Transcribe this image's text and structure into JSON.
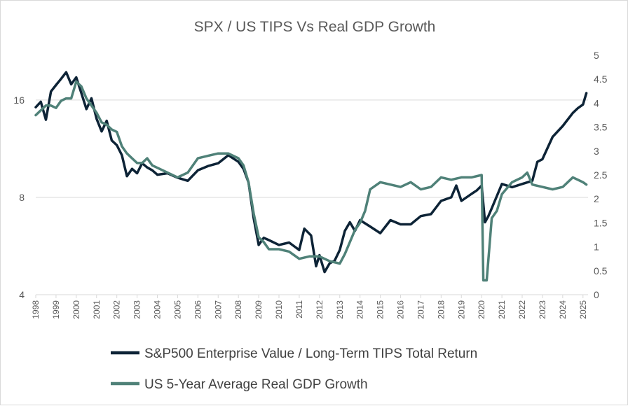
{
  "chart_data": {
    "type": "line",
    "title": "SPX / US TIPS Vs Real GDP Growth",
    "legend_position": "bottom",
    "grid": "horizontal",
    "y_left": {
      "scale": "log",
      "ylim": [
        4,
        22
      ],
      "ticks": [
        4,
        8,
        16
      ],
      "tick_labels": [
        "4",
        "8",
        "16"
      ]
    },
    "y_right": {
      "scale": "linear",
      "ylim": [
        0,
        5
      ],
      "ticks": [
        0,
        0.5,
        1,
        1.5,
        2,
        2.5,
        3,
        3.5,
        4,
        4.5,
        5
      ],
      "tick_labels": [
        "0",
        "0.5",
        "1",
        "1.5",
        "2",
        "2.5",
        "3",
        "3.5",
        "4",
        "4.5",
        "5"
      ]
    },
    "x_ticks": [
      "1998",
      "1999",
      "2000",
      "2001",
      "2002",
      "2003",
      "2004",
      "2005",
      "2006",
      "2007",
      "2008",
      "2009",
      "2010",
      "2011",
      "2012",
      "2013",
      "2014",
      "2015",
      "2016",
      "2017",
      "2018",
      "2019",
      "2020",
      "2021",
      "2022",
      "2023",
      "2024",
      "2025"
    ],
    "series": [
      {
        "name": "S&P500 Enterprise Value / Long-Term TIPS Total Return",
        "axis": "left",
        "color": "#0d2336",
        "x": [
          "1998-01",
          "1998-04",
          "1998-07",
          "1998-10",
          "1999-01",
          "1999-04",
          "1999-07",
          "1999-10",
          "2000-01",
          "2000-04",
          "2000-07",
          "2000-10",
          "2001-01",
          "2001-04",
          "2001-07",
          "2001-10",
          "2002-01",
          "2002-04",
          "2002-07",
          "2002-10",
          "2003-01",
          "2003-04",
          "2003-07",
          "2003-10",
          "2004-01",
          "2004-07",
          "2005-01",
          "2005-07",
          "2006-01",
          "2006-07",
          "2007-01",
          "2007-07",
          "2008-01",
          "2008-04",
          "2008-07",
          "2008-10",
          "2009-01",
          "2009-04",
          "2009-07",
          "2010-01",
          "2010-07",
          "2011-01",
          "2011-04",
          "2011-08",
          "2011-11",
          "2012-01",
          "2012-04",
          "2012-07",
          "2012-10",
          "2013-01",
          "2013-04",
          "2013-07",
          "2013-10",
          "2014-01",
          "2014-07",
          "2015-01",
          "2015-07",
          "2016-01",
          "2016-07",
          "2017-01",
          "2017-07",
          "2018-01",
          "2018-07",
          "2018-10",
          "2019-01",
          "2019-07",
          "2019-10",
          "2020-01",
          "2020-03",
          "2020-05",
          "2020-07",
          "2021-01",
          "2021-07",
          "2022-01",
          "2022-07",
          "2022-10",
          "2023-01",
          "2023-07",
          "2024-01",
          "2024-07",
          "2024-10",
          "2025-01",
          "2025-03"
        ],
        "values": [
          15.2,
          15.8,
          13.9,
          17.0,
          17.8,
          18.6,
          19.5,
          17.9,
          18.8,
          16.8,
          15.0,
          16.2,
          14.0,
          12.8,
          13.8,
          12.0,
          11.6,
          10.8,
          9.3,
          9.8,
          9.5,
          10.2,
          9.9,
          9.7,
          9.4,
          9.5,
          9.2,
          9.0,
          9.7,
          10.0,
          10.2,
          10.8,
          10.3,
          9.8,
          8.9,
          6.9,
          5.7,
          6.0,
          5.9,
          5.7,
          5.8,
          5.5,
          6.4,
          6.1,
          4.9,
          5.3,
          4.7,
          5.0,
          5.1,
          5.5,
          6.3,
          6.7,
          6.3,
          6.8,
          6.5,
          6.2,
          6.8,
          6.6,
          6.6,
          7.0,
          7.1,
          7.8,
          8.0,
          8.7,
          7.8,
          8.2,
          8.4,
          8.7,
          6.7,
          7.0,
          7.4,
          8.8,
          8.6,
          8.8,
          9.0,
          10.3,
          10.5,
          12.3,
          13.3,
          14.6,
          15.1,
          15.5,
          16.8
        ]
      },
      {
        "name": "US 5-Year Average Real GDP Growth",
        "axis": "right",
        "color": "#4f8178",
        "x": [
          "1998-01",
          "1998-04",
          "1998-07",
          "1998-10",
          "1999-01",
          "1999-04",
          "1999-07",
          "1999-10",
          "2000-01",
          "2000-04",
          "2000-07",
          "2000-10",
          "2001-01",
          "2001-04",
          "2001-07",
          "2001-10",
          "2002-01",
          "2002-04",
          "2002-07",
          "2002-10",
          "2003-01",
          "2003-04",
          "2003-07",
          "2003-10",
          "2004-01",
          "2004-07",
          "2005-01",
          "2005-07",
          "2006-01",
          "2006-07",
          "2007-01",
          "2007-07",
          "2008-01",
          "2008-04",
          "2008-07",
          "2008-10",
          "2009-01",
          "2009-04",
          "2009-07",
          "2010-01",
          "2010-07",
          "2011-01",
          "2011-07",
          "2012-01",
          "2012-07",
          "2013-01",
          "2013-04",
          "2013-07",
          "2013-10",
          "2014-01",
          "2014-04",
          "2014-07",
          "2015-01",
          "2015-07",
          "2016-01",
          "2016-07",
          "2017-01",
          "2017-07",
          "2018-01",
          "2018-07",
          "2019-01",
          "2019-07",
          "2020-01",
          "2020-02",
          "2020-04",
          "2020-07",
          "2020-10",
          "2021-01",
          "2021-07",
          "2022-01",
          "2022-04",
          "2022-07",
          "2023-01",
          "2023-07",
          "2024-01",
          "2024-07",
          "2025-01",
          "2025-03"
        ],
        "values": [
          3.75,
          3.85,
          3.95,
          3.95,
          3.9,
          4.05,
          4.1,
          4.1,
          4.45,
          4.35,
          4.1,
          3.95,
          3.8,
          3.6,
          3.55,
          3.45,
          3.4,
          3.1,
          2.95,
          2.85,
          2.75,
          2.75,
          2.85,
          2.7,
          2.65,
          2.55,
          2.45,
          2.55,
          2.85,
          2.9,
          2.95,
          2.95,
          2.85,
          2.7,
          2.35,
          1.7,
          1.2,
          1.1,
          0.95,
          0.95,
          0.9,
          0.75,
          0.8,
          0.8,
          0.7,
          0.65,
          0.85,
          1.1,
          1.35,
          1.5,
          1.75,
          2.2,
          2.35,
          2.3,
          2.25,
          2.35,
          2.2,
          2.25,
          2.45,
          2.4,
          2.45,
          2.45,
          2.5,
          0.3,
          0.3,
          1.6,
          1.75,
          2.1,
          2.35,
          2.45,
          2.55,
          2.3,
          2.25,
          2.2,
          2.25,
          2.45,
          2.35,
          2.3
        ]
      }
    ]
  }
}
